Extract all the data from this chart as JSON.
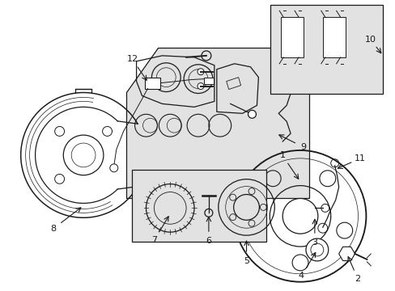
{
  "bg_color": "#ffffff",
  "line_color": "#1a1a1a",
  "gray_fill": "#d8d8d8",
  "light_gray": "#e2e2e2"
}
